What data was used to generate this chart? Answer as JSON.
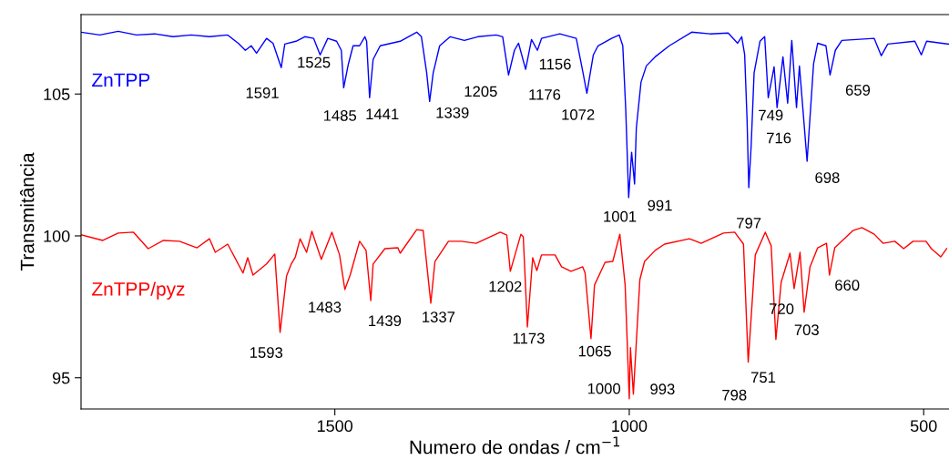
{
  "chart_data": {
    "type": "line",
    "xlabel": "Numero de ondas / cm$^{−1}$",
    "ylabel": "Transmitância",
    "xlim": [
      1931,
      457
    ],
    "ylim": [
      93.9,
      107.8
    ],
    "xticks": [
      1500,
      1000,
      500
    ],
    "yticks": [
      95,
      100,
      105
    ],
    "grid": false,
    "legend": false,
    "marker": "none",
    "line_style": "solid",
    "series": [
      {
        "name": "ZnTPP",
        "color": "#0000ff",
        "x": [
          1931,
          1899,
          1868,
          1837,
          1806,
          1775,
          1744,
          1713,
          1682,
          1664,
          1652,
          1642,
          1633,
          1616,
          1605,
          1591,
          1585,
          1566,
          1551,
          1536,
          1525,
          1512,
          1497,
          1489,
          1485,
          1477,
          1469,
          1458,
          1449,
          1446,
          1441,
          1435,
          1423,
          1389,
          1361,
          1353,
          1344,
          1339,
          1333,
          1322,
          1304,
          1280,
          1257,
          1226,
          1215,
          1205,
          1195,
          1188,
          1176,
          1166,
          1156,
          1149,
          1118,
          1090,
          1079,
          1072,
          1061,
          1053,
          1030,
          1017,
          1011,
          1006,
          1001,
          996,
          991,
          988,
          980,
          971,
          956,
          932,
          894,
          863,
          832,
          816,
          809,
          804,
          800,
          797,
          793,
          788,
          778,
          770,
          764,
          754,
          749,
          739,
          731,
          724,
          716,
          711,
          698,
          687,
          680,
          666,
          659,
          650,
          639,
          584,
          572,
          561,
          515,
          504,
          495,
          458
        ],
        "values": [
          107.18,
          107.08,
          107.21,
          107.08,
          107.12,
          107.02,
          107.08,
          107.02,
          107.08,
          106.79,
          106.54,
          106.7,
          106.44,
          106.96,
          106.79,
          105.93,
          106.76,
          106.86,
          107.02,
          106.96,
          106.38,
          106.96,
          106.86,
          106.54,
          105.22,
          106.06,
          106.7,
          106.7,
          107.02,
          106.86,
          104.87,
          106.22,
          106.7,
          106.86,
          107.18,
          107.02,
          105.74,
          104.74,
          105.74,
          106.7,
          107.02,
          106.89,
          107.02,
          107.08,
          107.02,
          105.67,
          106.54,
          106.79,
          105.87,
          106.92,
          106.54,
          106.96,
          107.12,
          106.96,
          105.8,
          105.03,
          106.38,
          106.7,
          106.96,
          107.08,
          106.7,
          104.46,
          101.35,
          102.95,
          101.83,
          103.81,
          105.42,
          105.99,
          106.31,
          106.7,
          107.18,
          107.12,
          107.15,
          106.79,
          107.02,
          106.38,
          104.13,
          101.7,
          103.17,
          105.74,
          106.86,
          107.02,
          104.87,
          105.96,
          104.52,
          106.31,
          104.68,
          106.89,
          104.52,
          105.99,
          102.63,
          106.06,
          106.79,
          106.7,
          105.67,
          106.54,
          106.89,
          106.96,
          106.35,
          106.76,
          106.86,
          106.38,
          106.86,
          106.76
        ]
      },
      {
        "name": "ZnTPP/pyz",
        "color": "#ff0000",
        "x": [
          1930,
          1894,
          1868,
          1842,
          1817,
          1791,
          1764,
          1734,
          1713,
          1703,
          1682,
          1656,
          1648,
          1639,
          1616,
          1602,
          1593,
          1582,
          1574,
          1567,
          1559,
          1548,
          1539,
          1523,
          1505,
          1492,
          1483,
          1474,
          1458,
          1447,
          1439,
          1435,
          1415,
          1393,
          1389,
          1361,
          1350,
          1337,
          1330,
          1307,
          1285,
          1260,
          1219,
          1208,
          1202,
          1184,
          1180,
          1173,
          1164,
          1157,
          1149,
          1126,
          1115,
          1099,
          1079,
          1075,
          1065,
          1059,
          1041,
          1028,
          1016,
          1007,
          1000,
          998,
          993,
          982,
          974,
          956,
          940,
          898,
          878,
          840,
          821,
          806,
          798,
          786,
          769,
          759,
          751,
          742,
          727,
          720,
          710,
          703,
          693,
          680,
          665,
          660,
          651,
          620,
          605,
          584,
          569,
          549,
          534,
          518,
          496,
          487,
          471,
          461
        ],
        "values": [
          100.03,
          99.84,
          100.1,
          100.13,
          99.55,
          99.84,
          99.81,
          99.58,
          99.9,
          99.42,
          99.71,
          98.69,
          99.23,
          98.62,
          99.01,
          99.36,
          96.6,
          98.59,
          99.01,
          99.26,
          99.9,
          99.42,
          100.16,
          99.17,
          100.13,
          99.33,
          98.11,
          98.62,
          99.81,
          99.49,
          97.72,
          99.01,
          99.55,
          99.58,
          99.39,
          100.22,
          100.19,
          97.63,
          99.1,
          99.81,
          99.81,
          99.74,
          100.13,
          100.03,
          98.75,
          100.06,
          99.97,
          96.79,
          99.23,
          98.78,
          99.33,
          99.33,
          98.91,
          98.75,
          98.91,
          98.69,
          96.38,
          98.27,
          99.07,
          99.1,
          100.06,
          98.27,
          94.26,
          96.06,
          94.42,
          98.46,
          99.1,
          99.49,
          99.71,
          99.9,
          99.74,
          100.1,
          100.13,
          99.71,
          95.55,
          99.33,
          100.13,
          99.65,
          96.35,
          98.37,
          99.39,
          98.14,
          99.42,
          97.31,
          98.91,
          99.58,
          99.74,
          98.62,
          99.58,
          100.19,
          100.29,
          100.06,
          99.74,
          99.81,
          99.55,
          99.81,
          99.81,
          99.55,
          99.26,
          99.55
        ]
      }
    ],
    "annotations": [
      {
        "text": "1591",
        "x": 1591,
        "y": 105.93
      },
      {
        "text": "1525",
        "x": 1525,
        "y": 106.38
      },
      {
        "text": "1485",
        "x": 1485,
        "y": 105.22
      },
      {
        "text": "1441",
        "x": 1441,
        "y": 104.87
      },
      {
        "text": "1339",
        "x": 1339,
        "y": 104.74
      },
      {
        "text": "1205",
        "x": 1205,
        "y": 105.67
      },
      {
        "text": "1156",
        "x": 1156,
        "y": 106.54
      },
      {
        "text": "1176",
        "x": 1176,
        "y": 105.87
      },
      {
        "text": "1072",
        "x": 1072,
        "y": 105.03
      },
      {
        "text": "1001",
        "x": 1001,
        "y": 101.35
      },
      {
        "text": "991",
        "x": 991,
        "y": 101.83
      },
      {
        "text": "797",
        "x": 797,
        "y": 101.7
      },
      {
        "text": "749",
        "x": 749,
        "y": 104.52
      },
      {
        "text": "716",
        "x": 716,
        "y": 104.52
      },
      {
        "text": "698",
        "x": 698,
        "y": 102.63
      },
      {
        "text": "659",
        "x": 659,
        "y": 105.67
      },
      {
        "text": "1593",
        "x": 1593,
        "y": 96.6
      },
      {
        "text": "1483",
        "x": 1483,
        "y": 98.11
      },
      {
        "text": "1439",
        "x": 1439,
        "y": 97.72
      },
      {
        "text": "1337",
        "x": 1337,
        "y": 97.63
      },
      {
        "text": "1202",
        "x": 1202,
        "y": 98.75
      },
      {
        "text": "1173",
        "x": 1173,
        "y": 96.79
      },
      {
        "text": "1065",
        "x": 1065,
        "y": 96.38
      },
      {
        "text": "1000",
        "x": 1000,
        "y": 94.26
      },
      {
        "text": "993",
        "x": 993,
        "y": 94.42
      },
      {
        "text": "798",
        "x": 798,
        "y": 95.55
      },
      {
        "text": "751",
        "x": 751,
        "y": 96.35
      },
      {
        "text": "720",
        "x": 720,
        "y": 98.14
      },
      {
        "text": "703",
        "x": 703,
        "y": 97.31
      },
      {
        "text": "660",
        "x": 660,
        "y": 98.62
      }
    ]
  }
}
